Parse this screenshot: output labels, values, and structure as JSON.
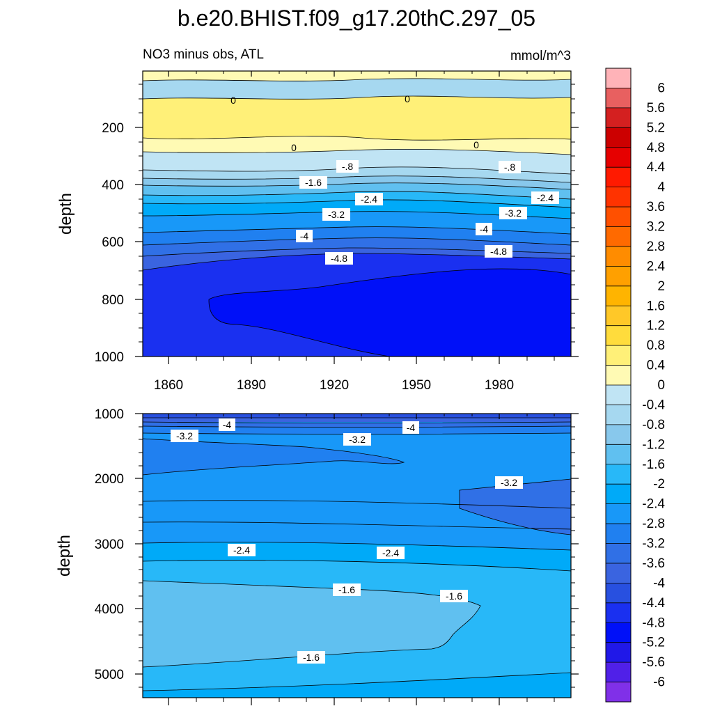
{
  "chart_data": {
    "type": "contour",
    "title": "b.e20.BHIST.f09_g17.20thC.297_05",
    "variable": "NO3 minus obs, ATL",
    "units": "mmol/m^3",
    "x_ticks": [
      "1860",
      "1890",
      "1920",
      "1950",
      "1980"
    ],
    "colorbar": {
      "labels": [
        "6",
        "5.6",
        "5.2",
        "4.8",
        "4.4",
        "4",
        "3.6",
        "3.2",
        "2.8",
        "2.4",
        "2",
        "1.6",
        "1.2",
        "0.8",
        "0.4",
        "0",
        "-0.4",
        "-0.8",
        "-1.2",
        "-1.6",
        "-2",
        "-2.4",
        "-2.8",
        "-3.2",
        "-3.6",
        "-4",
        "-4.4",
        "-4.8",
        "-5.2",
        "-5.6",
        "-6"
      ],
      "colors": [
        "#FFB3B8",
        "#E86060",
        "#D42020",
        "#CC0000",
        "#E60000",
        "#FF1A00",
        "#FF3300",
        "#FF5000",
        "#FF6A00",
        "#FF8C00",
        "#FFA000",
        "#FFB400",
        "#FFC828",
        "#FFDC3C",
        "#FFF078",
        "#FFFAB4",
        "#C0E4F4",
        "#A6D8F0",
        "#88C8EC",
        "#60C0F0",
        "#28B8F8",
        "#00AAF8",
        "#1898F8",
        "#2080F0",
        "#3070E6",
        "#3A64E0",
        "#2850E0",
        "#1A30F0",
        "#0010F8",
        "#2018E8",
        "#5020E8",
        "#8030E8"
      ]
    },
    "panels": [
      {
        "name": "upper",
        "ylabel": "depth",
        "y_range": [
          1000,
          0
        ],
        "y_ticks": [
          "200",
          "400",
          "600",
          "800",
          "1000"
        ],
        "contour_labels": [
          "0",
          "0",
          "0",
          "0",
          "-.8",
          "-.8",
          "-1.6",
          "-2.4",
          "-2.4",
          "-3.2",
          "-3.2",
          "-4",
          "-4",
          "-4.8",
          "-4.8"
        ]
      },
      {
        "name": "lower",
        "ylabel": "depth",
        "y_range": [
          5400,
          1000
        ],
        "y_ticks": [
          "1000",
          "2000",
          "3000",
          "4000",
          "5000"
        ],
        "contour_labels": [
          "-4",
          "-4",
          "-3.2",
          "-3.2",
          "-3.2",
          "-2.4",
          "-2.4",
          "-1.6",
          "-1.6",
          "-1.6"
        ]
      }
    ]
  }
}
